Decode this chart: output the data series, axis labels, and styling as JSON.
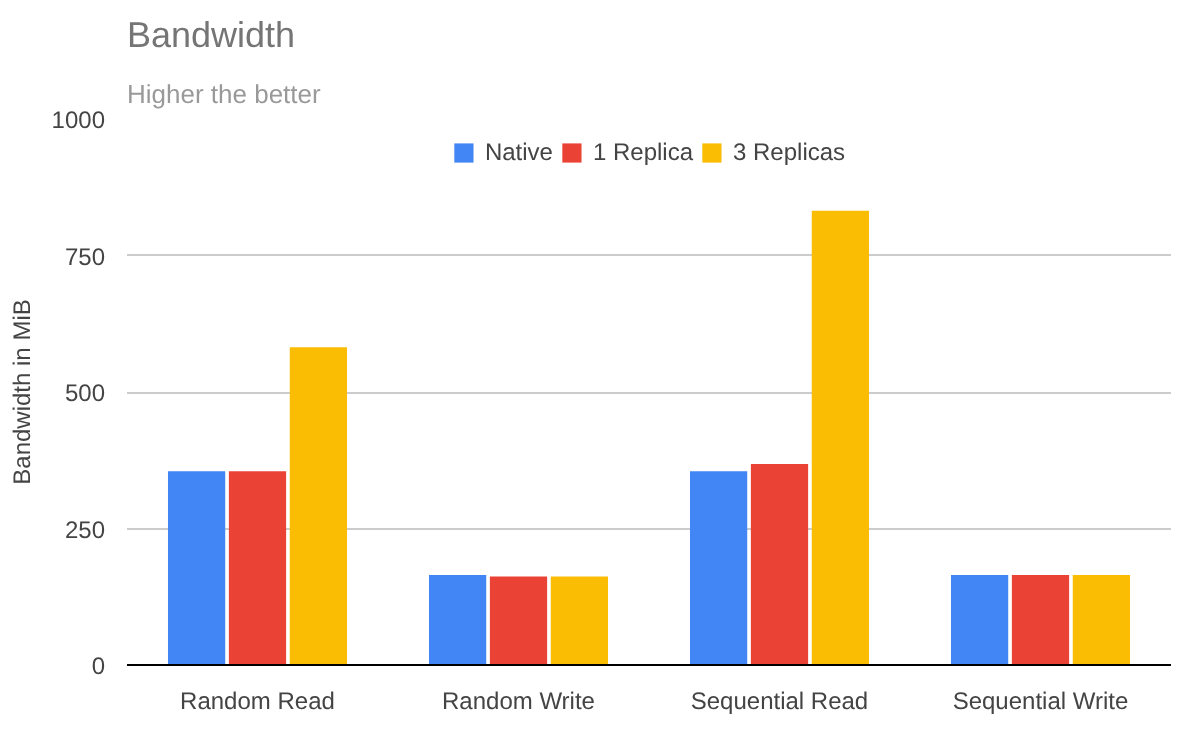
{
  "chart_data": {
    "type": "bar",
    "title": "Bandwidth",
    "subtitle": "Higher the better",
    "ylabel": "Bandwidth in MiB",
    "categories": [
      "Random Read",
      "Random Write",
      "Sequential Read",
      "Sequential Write"
    ],
    "series": [
      {
        "name": "Native",
        "color": "#4285f4",
        "values": [
          355,
          165,
          355,
          165
        ]
      },
      {
        "name": "1 Replica",
        "color": "#ea4335",
        "values": [
          355,
          162,
          368,
          165
        ]
      },
      {
        "name": "3 Replicas",
        "color": "#fbbc04",
        "values": [
          582,
          162,
          832,
          165
        ]
      }
    ],
    "ylim": [
      0,
      1000
    ],
    "yticks": [
      0,
      250,
      500,
      750,
      1000
    ],
    "grid": "y",
    "legend": "top"
  }
}
